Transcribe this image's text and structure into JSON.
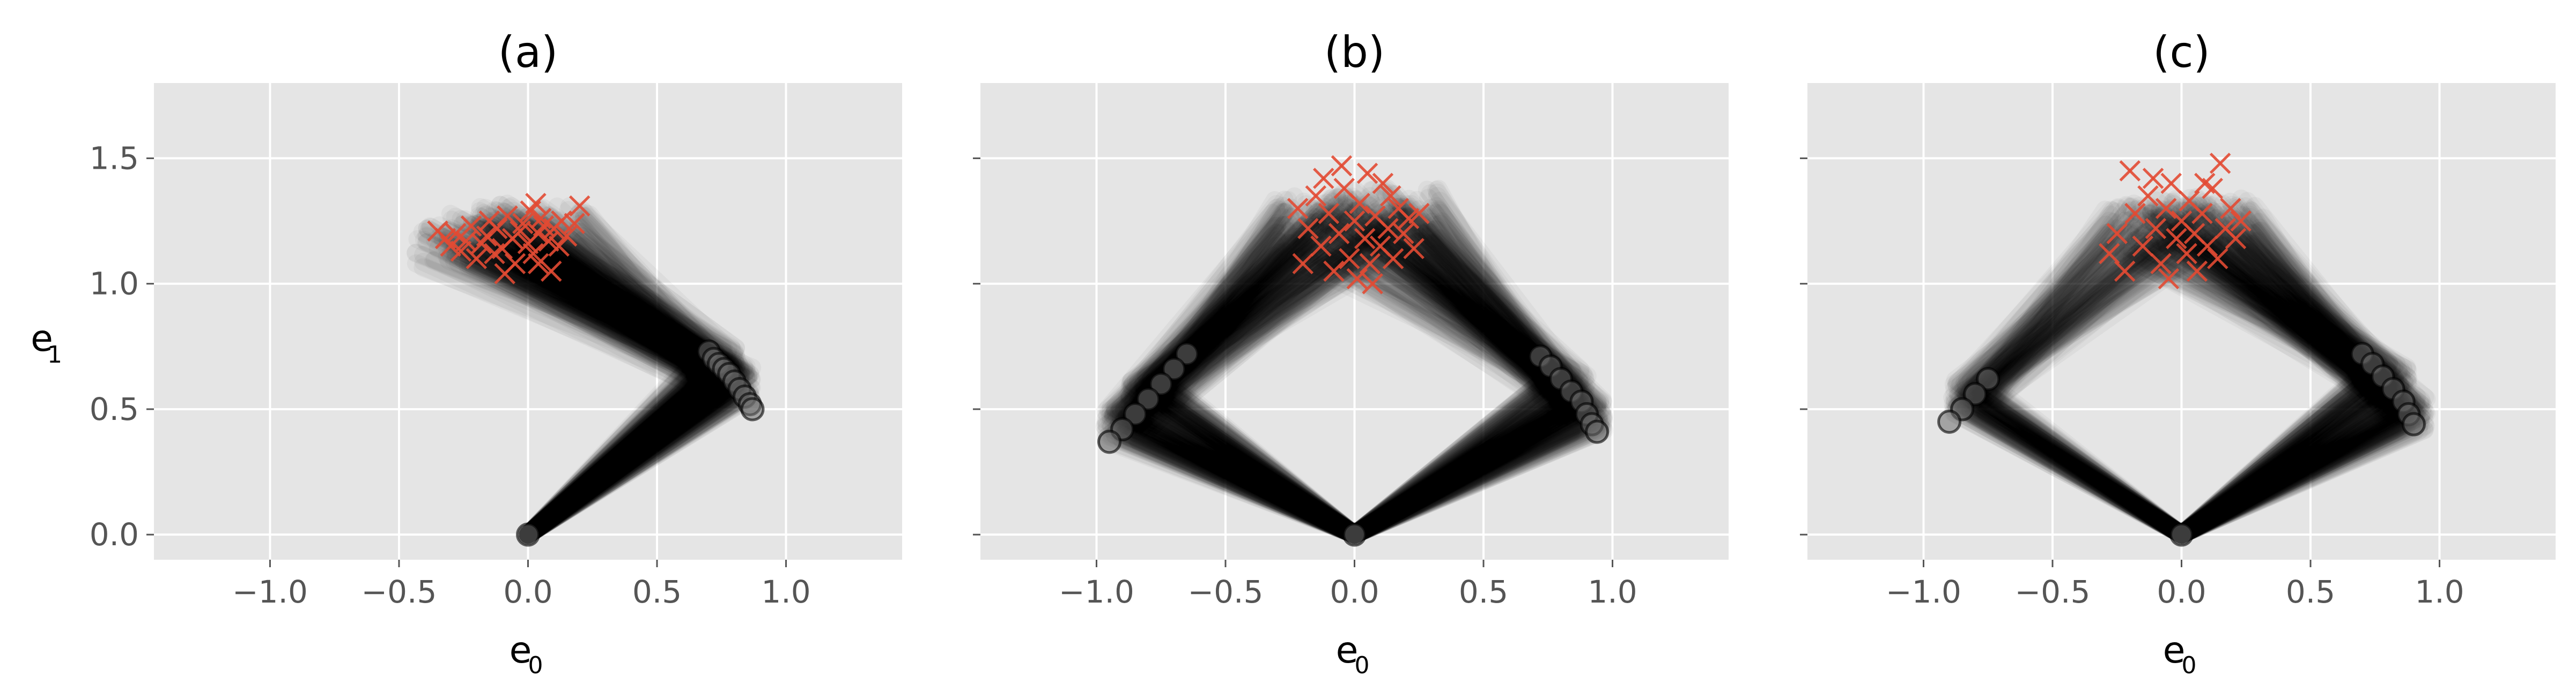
{
  "chart_data": [
    {
      "type": "scatter",
      "title": "(a)",
      "xlabel": "e",
      "xlabel_sub": "0",
      "ylabel": "e",
      "ylabel_sub": "1",
      "xlim": [
        -1.45,
        1.45
      ],
      "ylim": [
        -0.1,
        1.8
      ],
      "xticks": [
        -1.0,
        -0.5,
        0.0,
        0.5,
        1.0
      ],
      "xtick_labels": [
        "−1.0",
        "−0.5",
        "0.0",
        "0.5",
        "1.0"
      ],
      "yticks": [
        0.0,
        0.5,
        1.0,
        1.5
      ],
      "ytick_labels": [
        "0.0",
        "0.5",
        "1.0",
        "1.5"
      ],
      "show_ytick_labels": true,
      "grid": true,
      "series": [
        {
          "marker": "o",
          "color": "#000000",
          "points": [
            [
              0.0,
              0.0
            ]
          ]
        },
        {
          "marker": "o",
          "color": "#000000",
          "points": [
            [
              0.7,
              0.73
            ],
            [
              0.72,
              0.7
            ],
            [
              0.74,
              0.68
            ],
            [
              0.76,
              0.66
            ],
            [
              0.78,
              0.64
            ],
            [
              0.8,
              0.61
            ],
            [
              0.82,
              0.58
            ],
            [
              0.84,
              0.55
            ],
            [
              0.86,
              0.52
            ],
            [
              0.87,
              0.5
            ]
          ]
        },
        {
          "marker": "x",
          "color": "#E24A33",
          "points": [
            [
              -0.35,
              1.21
            ],
            [
              -0.32,
              1.18
            ],
            [
              -0.3,
              1.15
            ],
            [
              -0.28,
              1.2
            ],
            [
              -0.26,
              1.13
            ],
            [
              -0.24,
              1.17
            ],
            [
              -0.22,
              1.23
            ],
            [
              -0.2,
              1.1
            ],
            [
              -0.18,
              1.16
            ],
            [
              -0.16,
              1.19
            ],
            [
              -0.15,
              1.25
            ],
            [
              -0.13,
              1.12
            ],
            [
              -0.12,
              1.22
            ],
            [
              -0.1,
              1.14
            ],
            [
              -0.08,
              1.27
            ],
            [
              -0.06,
              1.18
            ],
            [
              -0.05,
              1.08
            ],
            [
              -0.03,
              1.21
            ],
            [
              -0.02,
              1.24
            ],
            [
              0.0,
              1.16
            ],
            [
              0.01,
              1.29
            ],
            [
              0.02,
              1.12
            ],
            [
              0.04,
              1.2
            ],
            [
              0.05,
              1.26
            ],
            [
              0.06,
              1.23
            ],
            [
              0.08,
              1.17
            ],
            [
              0.09,
              1.05
            ],
            [
              0.1,
              1.22
            ],
            [
              0.12,
              1.15
            ],
            [
              0.13,
              1.25
            ],
            [
              0.15,
              1.19
            ],
            [
              0.18,
              1.24
            ],
            [
              0.2,
              1.31
            ],
            [
              0.03,
              1.32
            ],
            [
              -0.09,
              1.04
            ],
            [
              0.04,
              1.08
            ]
          ]
        }
      ],
      "trajectories": [
        {
          "elbow": [
            0.78,
            0.63
          ],
          "end": [
            -0.1,
            1.18
          ],
          "spread": 0.1
        },
        {
          "elbow": [
            0.8,
            0.6
          ],
          "end": [
            -0.22,
            1.16
          ],
          "spread": 0.1
        },
        {
          "elbow": [
            0.74,
            0.68
          ],
          "end": [
            0.02,
            1.22
          ],
          "spread": 0.1
        }
      ]
    },
    {
      "type": "scatter",
      "title": "(b)",
      "xlabel": "e",
      "xlabel_sub": "0",
      "ylabel": "",
      "ylabel_sub": "",
      "xlim": [
        -1.45,
        1.45
      ],
      "ylim": [
        -0.1,
        1.8
      ],
      "xticks": [
        -1.0,
        -0.5,
        0.0,
        0.5,
        1.0
      ],
      "xtick_labels": [
        "−1.0",
        "−0.5",
        "0.0",
        "0.5",
        "1.0"
      ],
      "yticks": [
        0.0,
        0.5,
        1.0,
        1.5
      ],
      "ytick_labels": [
        "0.0",
        "0.5",
        "1.0",
        "1.5"
      ],
      "show_ytick_labels": false,
      "grid": true,
      "series": [
        {
          "marker": "o",
          "color": "#000000",
          "points": [
            [
              0.0,
              0.0
            ]
          ]
        },
        {
          "marker": "o",
          "color": "#000000",
          "points": [
            [
              0.72,
              0.71
            ],
            [
              0.76,
              0.67
            ],
            [
              0.8,
              0.62
            ],
            [
              0.84,
              0.57
            ],
            [
              0.88,
              0.53
            ],
            [
              0.9,
              0.48
            ],
            [
              0.92,
              0.44
            ],
            [
              0.94,
              0.41
            ],
            [
              -0.65,
              0.72
            ],
            [
              -0.7,
              0.66
            ],
            [
              -0.75,
              0.6
            ],
            [
              -0.8,
              0.54
            ],
            [
              -0.85,
              0.48
            ],
            [
              -0.9,
              0.42
            ],
            [
              -0.95,
              0.37
            ]
          ]
        },
        {
          "marker": "x",
          "color": "#E24A33",
          "points": [
            [
              -0.22,
              1.3
            ],
            [
              -0.2,
              1.08
            ],
            [
              -0.18,
              1.22
            ],
            [
              -0.15,
              1.35
            ],
            [
              -0.13,
              1.15
            ],
            [
              -0.1,
              1.28
            ],
            [
              -0.08,
              1.05
            ],
            [
              -0.06,
              1.2
            ],
            [
              -0.04,
              1.38
            ],
            [
              -0.02,
              1.1
            ],
            [
              0.0,
              1.25
            ],
            [
              0.01,
              1.02
            ],
            [
              0.02,
              1.32
            ],
            [
              0.04,
              1.18
            ],
            [
              0.05,
              1.44
            ],
            [
              0.06,
              1.08
            ],
            [
              0.08,
              1.27
            ],
            [
              0.1,
              1.15
            ],
            [
              0.11,
              1.4
            ],
            [
              0.13,
              1.22
            ],
            [
              0.15,
              1.1
            ],
            [
              0.17,
              1.3
            ],
            [
              0.19,
              1.2
            ],
            [
              0.21,
              1.26
            ],
            [
              0.23,
              1.14
            ],
            [
              0.25,
              1.28
            ],
            [
              -0.12,
              1.42
            ],
            [
              0.07,
              1.0
            ],
            [
              -0.05,
              1.47
            ],
            [
              0.14,
              1.35
            ]
          ]
        }
      ],
      "trajectories": [
        {
          "elbow": [
            0.82,
            0.58
          ],
          "end": [
            0.05,
            1.2
          ],
          "spread": 0.12
        },
        {
          "elbow": [
            -0.8,
            0.55
          ],
          "end": [
            -0.05,
            1.2
          ],
          "spread": 0.12
        },
        {
          "elbow": [
            0.9,
            0.47
          ],
          "end": [
            0.12,
            1.28
          ],
          "spread": 0.1
        },
        {
          "elbow": [
            -0.9,
            0.44
          ],
          "end": [
            -0.1,
            1.25
          ],
          "spread": 0.1
        }
      ]
    },
    {
      "type": "scatter",
      "title": "(c)",
      "xlabel": "e",
      "xlabel_sub": "0",
      "ylabel": "",
      "ylabel_sub": "",
      "xlim": [
        -1.45,
        1.45
      ],
      "ylim": [
        -0.1,
        1.8
      ],
      "xticks": [
        -1.0,
        -0.5,
        0.0,
        0.5,
        1.0
      ],
      "xtick_labels": [
        "−1.0",
        "−0.5",
        "0.0",
        "0.5",
        "1.0"
      ],
      "yticks": [
        0.0,
        0.5,
        1.0,
        1.5
      ],
      "ytick_labels": [
        "0.0",
        "0.5",
        "1.0",
        "1.5"
      ],
      "show_ytick_labels": false,
      "grid": true,
      "series": [
        {
          "marker": "o",
          "color": "#000000",
          "points": [
            [
              0.0,
              0.0
            ]
          ]
        },
        {
          "marker": "o",
          "color": "#000000",
          "points": [
            [
              0.7,
              0.72
            ],
            [
              0.74,
              0.68
            ],
            [
              0.78,
              0.63
            ],
            [
              0.82,
              0.58
            ],
            [
              0.86,
              0.53
            ],
            [
              0.88,
              0.48
            ],
            [
              0.9,
              0.44
            ],
            [
              -0.75,
              0.62
            ],
            [
              -0.8,
              0.56
            ],
            [
              -0.85,
              0.5
            ],
            [
              -0.9,
              0.45
            ]
          ]
        },
        {
          "marker": "x",
          "color": "#E24A33",
          "points": [
            [
              -0.28,
              1.12
            ],
            [
              -0.25,
              1.2
            ],
            [
              -0.22,
              1.05
            ],
            [
              -0.2,
              1.45
            ],
            [
              -0.18,
              1.28
            ],
            [
              -0.15,
              1.15
            ],
            [
              -0.13,
              1.35
            ],
            [
              -0.1,
              1.22
            ],
            [
              -0.08,
              1.08
            ],
            [
              -0.06,
              1.3
            ],
            [
              -0.04,
              1.4
            ],
            [
              -0.02,
              1.18
            ],
            [
              0.0,
              1.25
            ],
            [
              0.02,
              1.12
            ],
            [
              0.03,
              1.33
            ],
            [
              0.05,
              1.2
            ],
            [
              0.06,
              1.05
            ],
            [
              0.08,
              1.28
            ],
            [
              0.1,
              1.15
            ],
            [
              0.12,
              1.38
            ],
            [
              0.14,
              1.1
            ],
            [
              0.15,
              1.48
            ],
            [
              0.17,
              1.22
            ],
            [
              0.19,
              1.3
            ],
            [
              0.21,
              1.18
            ],
            [
              0.23,
              1.25
            ],
            [
              -0.05,
              1.02
            ],
            [
              0.09,
              1.4
            ],
            [
              -0.11,
              1.42
            ]
          ]
        }
      ],
      "trajectories": [
        {
          "elbow": [
            0.8,
            0.6
          ],
          "end": [
            0.0,
            1.2
          ],
          "spread": 0.12
        },
        {
          "elbow": [
            -0.82,
            0.55
          ],
          "end": [
            -0.08,
            1.22
          ],
          "spread": 0.1
        },
        {
          "elbow": [
            0.88,
            0.48
          ],
          "end": [
            0.1,
            1.25
          ],
          "spread": 0.1
        }
      ]
    }
  ]
}
